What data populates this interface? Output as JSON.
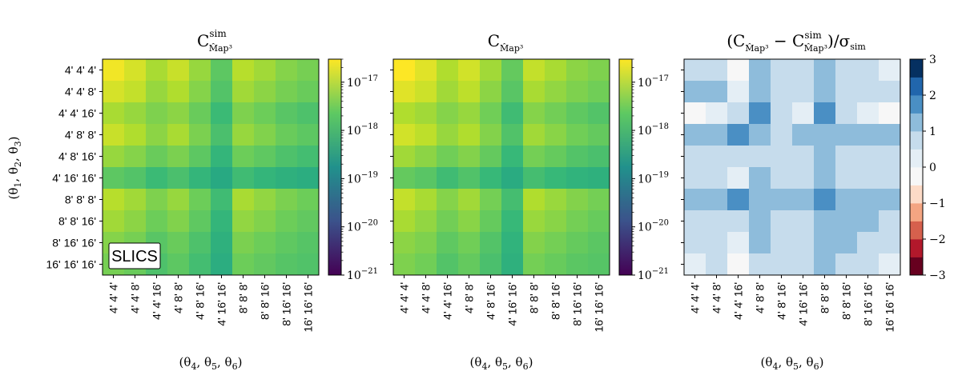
{
  "chart_data": {
    "type": "heatmap",
    "row_labels": [
      "4' 4' 4'",
      "4' 4' 8'",
      "4' 4' 16'",
      "4' 8' 8'",
      "4' 8' 16'",
      "4' 16' 16'",
      "8' 8' 8'",
      "8' 8' 16'",
      "8' 16' 16'",
      "16' 16' 16'"
    ],
    "col_labels": [
      "4' 4' 4'",
      "4' 4' 8'",
      "4' 4' 16'",
      "4' 8' 8'",
      "4' 8' 16'",
      "4' 16' 16'",
      "8' 8' 8'",
      "8' 8' 16'",
      "8' 16' 16'",
      "16' 16' 16'"
    ],
    "ylabel": "(θ1, θ2, θ3)",
    "panels": [
      {
        "title_main": "C",
        "title_sup": "sim",
        "title_sub": "M̂ap³",
        "xlabel": "(θ4, θ5, θ6)",
        "annotation": "SLICS",
        "colorbar": {
          "scale": "log",
          "range": [
            1e-21,
            3e-17
          ],
          "colormap": "viridis",
          "tick_values": [
            1e-17,
            1e-18,
            1e-19,
            1e-20,
            1e-21
          ],
          "ticks": [
            {
              "base": "10",
              "exp": "−17"
            },
            {
              "base": "10",
              "exp": "−18"
            },
            {
              "base": "10",
              "exp": "−19"
            },
            {
              "base": "10",
              "exp": "−20"
            },
            {
              "base": "10",
              "exp": "−21"
            }
          ]
        },
        "values": [
          [
            2.5e-17,
            1.6e-17,
            8e-18,
            1.3e-17,
            6e-18,
            2.2e-18,
            1e-17,
            7e-18,
            4.5e-18,
            3.5e-18
          ],
          [
            1.6e-17,
            1.2e-17,
            6e-18,
            9e-18,
            4.5e-18,
            1.8e-18,
            7e-18,
            5e-18,
            3.5e-18,
            2.8e-18
          ],
          [
            8e-18,
            6e-18,
            4e-18,
            5e-18,
            2.8e-18,
            1.1e-18,
            4e-18,
            3e-18,
            2e-18,
            1.6e-18
          ],
          [
            1.3e-17,
            9e-18,
            5e-18,
            8e-18,
            3.8e-18,
            1.5e-18,
            6e-18,
            4.2e-18,
            2.8e-18,
            2.2e-18
          ],
          [
            6e-18,
            4.5e-18,
            2.8e-18,
            3.8e-18,
            2.2e-18,
            9e-19,
            3e-18,
            2.3e-18,
            1.6e-18,
            1.3e-18
          ],
          [
            2.2e-18,
            1.8e-18,
            1.1e-18,
            1.5e-18,
            9e-19,
            5e-19,
            1.2e-18,
            9e-19,
            7e-19,
            6e-19
          ],
          [
            1e-17,
            7e-18,
            4e-18,
            6e-18,
            3e-18,
            1.2e-18,
            8e-18,
            5.5e-18,
            3.8e-18,
            3e-18
          ],
          [
            7e-18,
            5e-18,
            3e-18,
            4.2e-18,
            2.3e-18,
            9e-19,
            5.5e-18,
            4.2e-18,
            3e-18,
            2.4e-18
          ],
          [
            4.5e-18,
            3.5e-18,
            2e-18,
            2.8e-18,
            1.6e-18,
            7e-19,
            3.8e-18,
            3e-18,
            2.3e-18,
            1.9e-18
          ],
          [
            3.5e-18,
            2.8e-18,
            1.6e-18,
            2.2e-18,
            1.3e-18,
            6e-19,
            3e-18,
            2.4e-18,
            1.9e-18,
            1.7e-18
          ]
        ]
      },
      {
        "title_main": "C",
        "title_sup": "",
        "title_sub": "M̂ap³",
        "xlabel": "(θ4, θ5, θ6)",
        "colorbar": {
          "scale": "log",
          "range": [
            1e-21,
            3e-17
          ],
          "colormap": "viridis",
          "tick_values": [
            1e-17,
            1e-18,
            1e-19,
            1e-20,
            1e-21
          ],
          "ticks": [
            {
              "base": "10",
              "exp": "−17"
            },
            {
              "base": "10",
              "exp": "−18"
            },
            {
              "base": "10",
              "exp": "−19"
            },
            {
              "base": "10",
              "exp": "−20"
            },
            {
              "base": "10",
              "exp": "−21"
            }
          ]
        },
        "values": [
          [
            3e-17,
            1.9e-17,
            9e-18,
            1.5e-17,
            7e-18,
            2.5e-18,
            1.2e-17,
            8e-18,
            5e-18,
            4e-18
          ],
          [
            1.9e-17,
            1.4e-17,
            7e-18,
            1.1e-17,
            5e-18,
            2e-18,
            8e-18,
            5.5e-18,
            4e-18,
            3.2e-18
          ],
          [
            9e-18,
            7e-18,
            4.5e-18,
            6e-18,
            3.2e-18,
            1.2e-18,
            4.5e-18,
            3.3e-18,
            2.3e-18,
            1.8e-18
          ],
          [
            1.5e-17,
            1.1e-17,
            6e-18,
            9e-18,
            4.3e-18,
            1.7e-18,
            7e-18,
            4.8e-18,
            3.2e-18,
            2.5e-18
          ],
          [
            7e-18,
            5e-18,
            3.2e-18,
            4.3e-18,
            2.5e-18,
            1e-18,
            3.4e-18,
            2.6e-18,
            1.8e-18,
            1.5e-18
          ],
          [
            2.5e-18,
            2e-18,
            1.2e-18,
            1.7e-18,
            1e-18,
            5.5e-19,
            1.35e-18,
            1e-18,
            8e-19,
            7e-19
          ],
          [
            1.2e-17,
            8e-18,
            4.5e-18,
            7e-18,
            3.4e-18,
            1.35e-18,
            9e-18,
            6.2e-18,
            4.3e-18,
            3.4e-18
          ],
          [
            8e-18,
            5.5e-18,
            3.3e-18,
            4.8e-18,
            2.6e-18,
            1e-18,
            6.2e-18,
            4.8e-18,
            3.4e-18,
            2.7e-18
          ],
          [
            5e-18,
            4e-18,
            2.3e-18,
            3.2e-18,
            1.8e-18,
            8e-19,
            4.3e-18,
            3.4e-18,
            2.6e-18,
            2.1e-18
          ],
          [
            4e-18,
            3.2e-18,
            1.8e-18,
            2.5e-18,
            1.5e-18,
            7e-19,
            3.4e-18,
            2.7e-18,
            2.1e-18,
            1.9e-18
          ]
        ]
      },
      {
        "title_prefix": "(C",
        "title_mid": " − C",
        "title_sup": "sim",
        "title_sub": "M̂ap³",
        "title_suffix": ")/σ",
        "title_suffix_sub": "sim",
        "xlabel": "(θ4, θ5, θ6)",
        "colorbar": {
          "scale": "linear",
          "range": [
            -3,
            3
          ],
          "colormap": "RdBu",
          "levels": 12,
          "tick_values": [
            3,
            2,
            1,
            0,
            -1,
            -2,
            -3
          ],
          "ticks": [
            "3",
            "2",
            "1",
            "0",
            "−1",
            "−2",
            "−3"
          ]
        },
        "values": [
          [
            0.8,
            0.8,
            -0.3,
            1.3,
            0.8,
            0.8,
            1.3,
            0.8,
            0.8,
            0.3
          ],
          [
            1.3,
            1.3,
            0.3,
            1.3,
            0.8,
            0.8,
            1.3,
            0.8,
            0.8,
            0.8
          ],
          [
            -0.3,
            0.3,
            0.8,
            1.8,
            0.8,
            0.3,
            1.8,
            0.8,
            0.3,
            -0.3
          ],
          [
            1.3,
            1.3,
            1.8,
            1.3,
            0.8,
            1.3,
            1.3,
            1.3,
            1.3,
            1.3
          ],
          [
            0.8,
            0.8,
            0.8,
            0.8,
            0.8,
            0.8,
            1.3,
            0.8,
            0.8,
            0.8
          ],
          [
            0.8,
            0.8,
            0.3,
            1.3,
            0.8,
            0.8,
            1.3,
            0.8,
            0.8,
            0.8
          ],
          [
            1.3,
            1.3,
            1.8,
            1.3,
            1.3,
            1.3,
            1.8,
            1.3,
            1.3,
            1.3
          ],
          [
            0.8,
            0.8,
            0.8,
            1.3,
            0.8,
            0.8,
            1.3,
            1.3,
            1.3,
            0.8
          ],
          [
            0.8,
            0.8,
            0.3,
            1.3,
            0.8,
            0.8,
            1.3,
            1.3,
            0.8,
            0.8
          ],
          [
            0.3,
            0.8,
            -0.3,
            0.8,
            0.8,
            0.8,
            1.3,
            0.8,
            0.8,
            0.3
          ]
        ]
      }
    ]
  }
}
